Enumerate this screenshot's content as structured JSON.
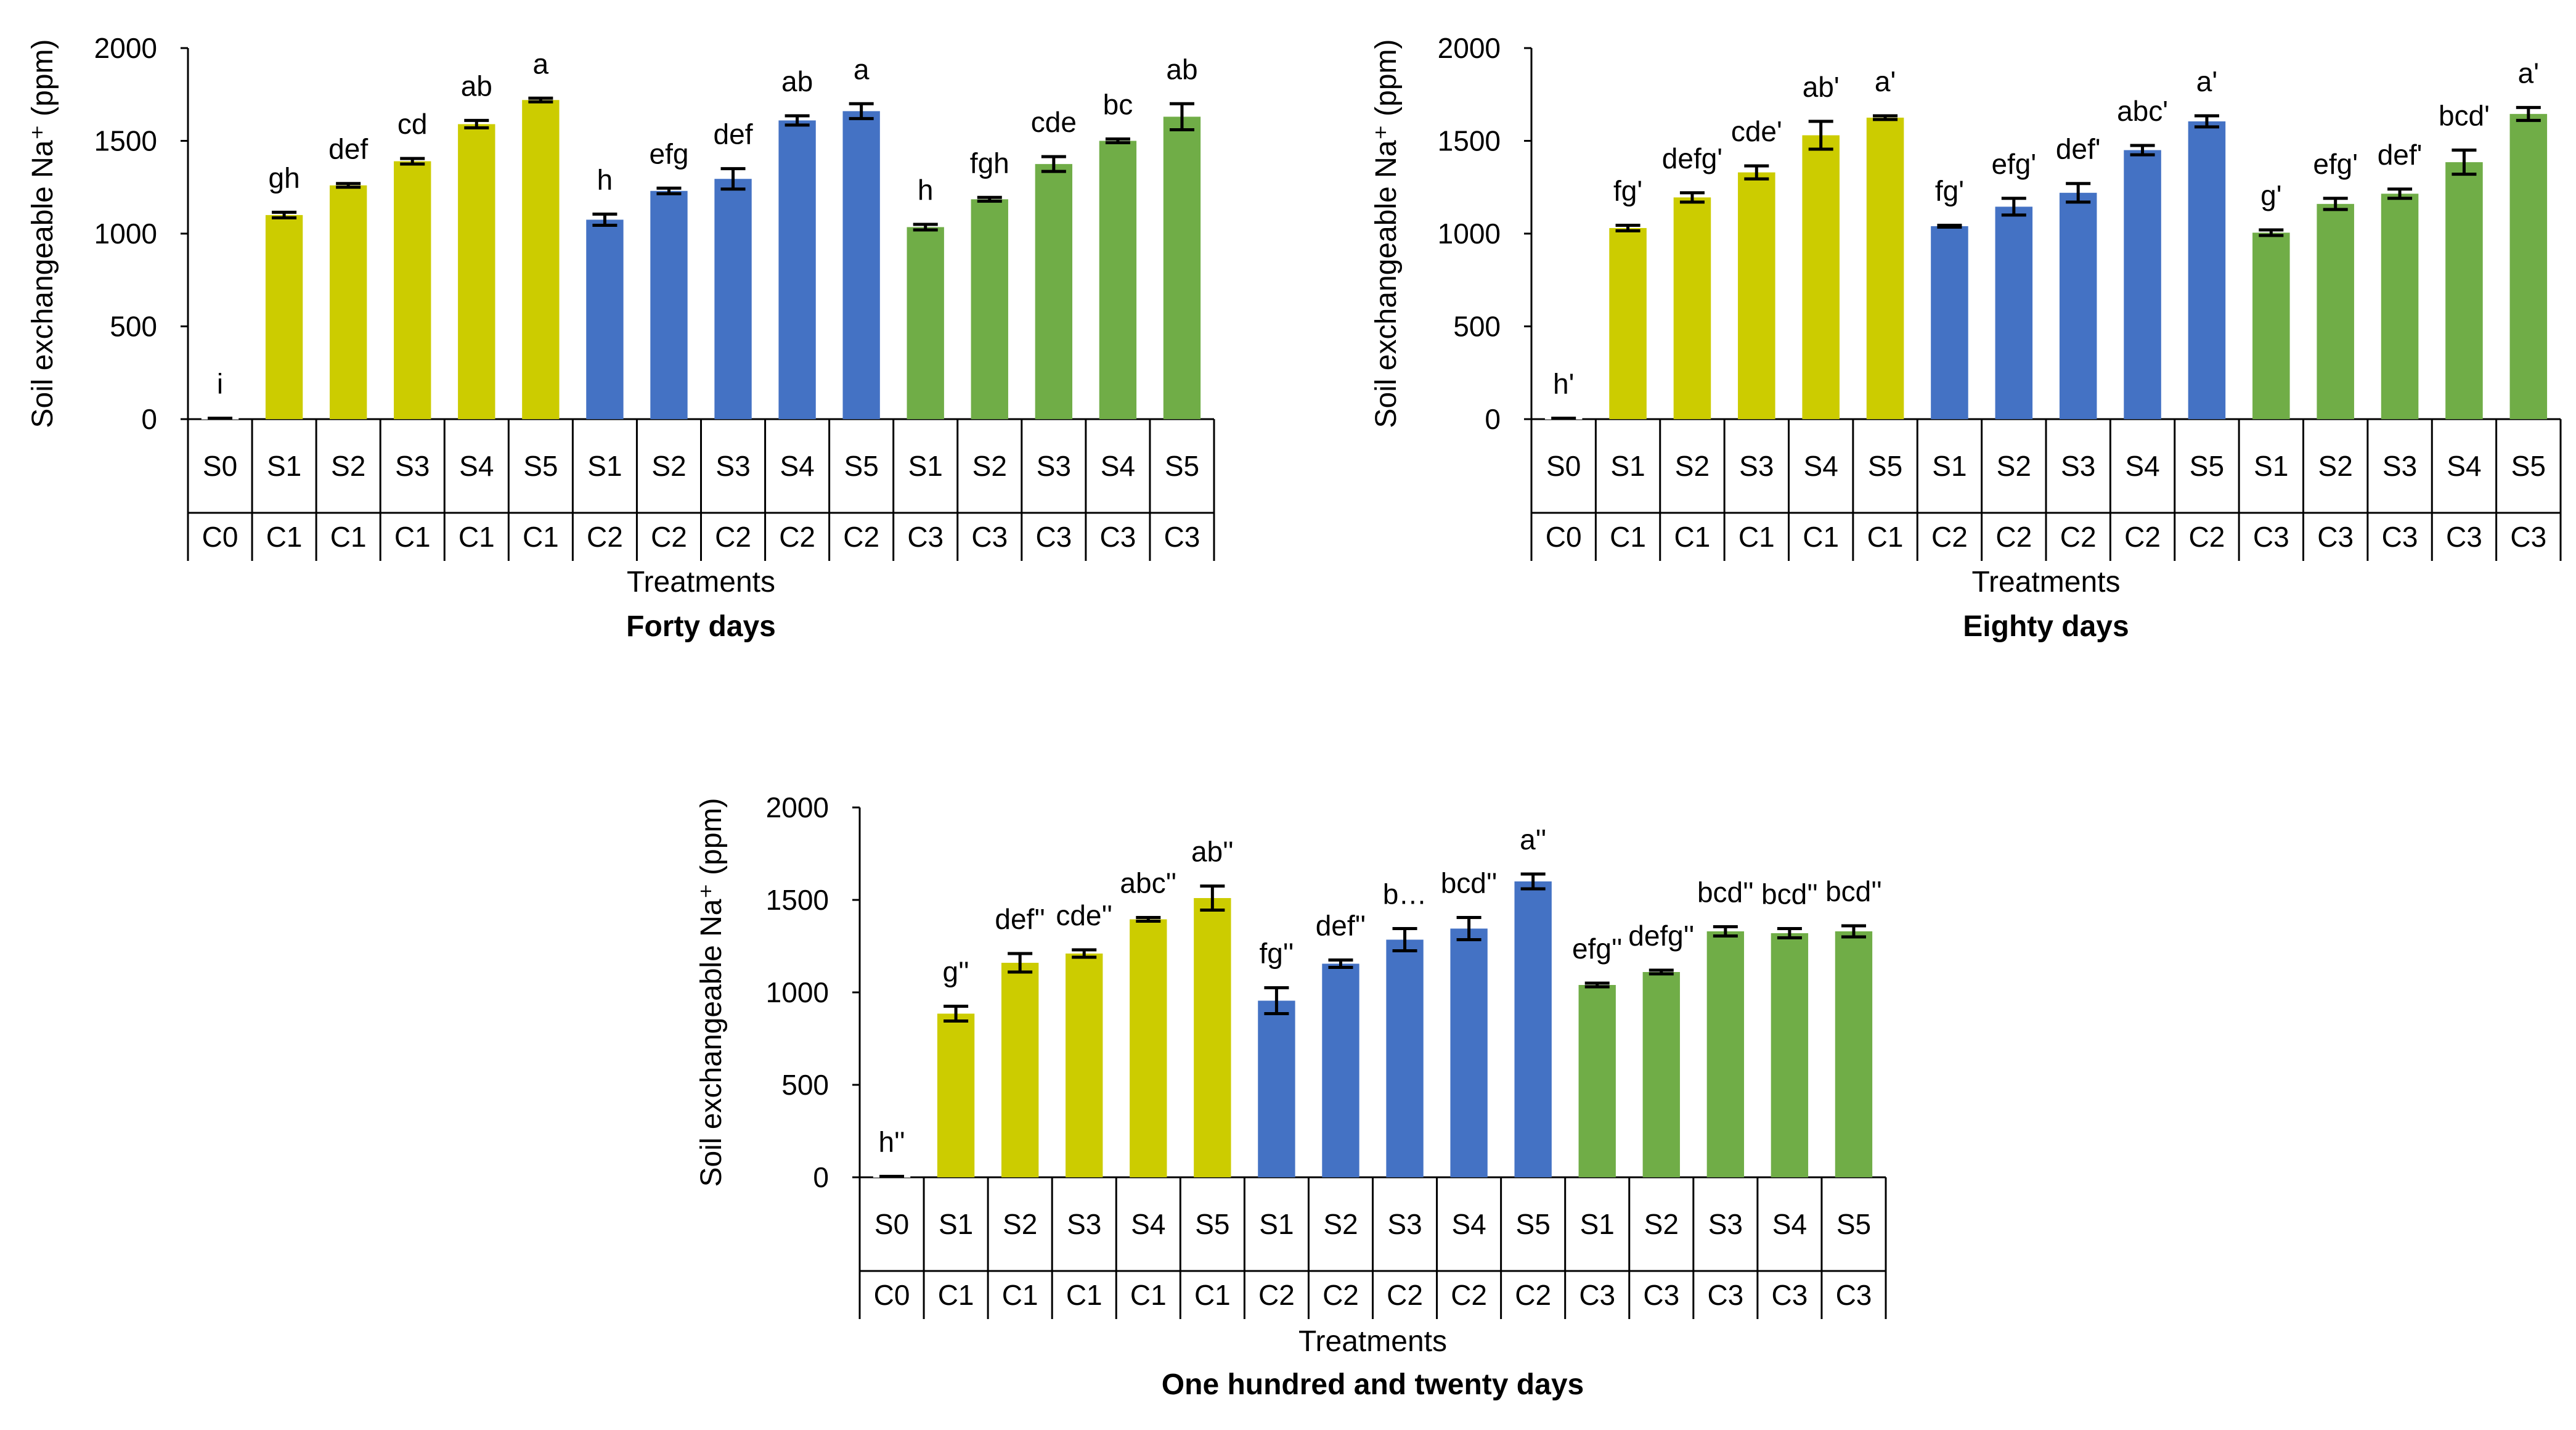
{
  "colors": {
    "C0": "#ffffff",
    "C1": "#cccc00",
    "C2": "#4472c4",
    "C3": "#70ad47",
    "axis": "#000000"
  },
  "chart_data": [
    {
      "type": "bar",
      "title": "Forty days",
      "xlabel": "Treatments",
      "ylabel": "Soil exchangeable Na⁺ (ppm)",
      "ylim": [
        0,
        2000
      ],
      "yticks": [
        0,
        500,
        1000,
        1500,
        2000
      ],
      "grid": false,
      "categories": [
        {
          "s": "S0",
          "c": "C0"
        },
        {
          "s": "S1",
          "c": "C1"
        },
        {
          "s": "S2",
          "c": "C1"
        },
        {
          "s": "S3",
          "c": "C1"
        },
        {
          "s": "S4",
          "c": "C1"
        },
        {
          "s": "S5",
          "c": "C1"
        },
        {
          "s": "S1",
          "c": "C2"
        },
        {
          "s": "S2",
          "c": "C2"
        },
        {
          "s": "S3",
          "c": "C2"
        },
        {
          "s": "S4",
          "c": "C2"
        },
        {
          "s": "S5",
          "c": "C2"
        },
        {
          "s": "S1",
          "c": "C3"
        },
        {
          "s": "S2",
          "c": "C3"
        },
        {
          "s": "S3",
          "c": "C3"
        },
        {
          "s": "S4",
          "c": "C3"
        },
        {
          "s": "S5",
          "c": "C3"
        }
      ],
      "values": [
        5,
        1100,
        1260,
        1390,
        1590,
        1720,
        1075,
        1230,
        1295,
        1610,
        1660,
        1035,
        1185,
        1375,
        1500,
        1630
      ],
      "errors": [
        0,
        15,
        10,
        15,
        20,
        10,
        30,
        15,
        55,
        25,
        40,
        15,
        10,
        40,
        10,
        70
      ],
      "labels": [
        "i",
        "gh",
        "def",
        "cd",
        "ab",
        "a",
        "h",
        "efg",
        "def",
        "ab",
        "a",
        "h",
        "fgh",
        "cde",
        "bc",
        "ab"
      ]
    },
    {
      "type": "bar",
      "title": "Eighty days",
      "xlabel": "Treatments",
      "ylabel": "Soil exchangeable Na⁺ (ppm)",
      "ylim": [
        0,
        2000
      ],
      "yticks": [
        0,
        500,
        1000,
        1500,
        2000
      ],
      "grid": false,
      "categories": [
        {
          "s": "S0",
          "c": "C0"
        },
        {
          "s": "S1",
          "c": "C1"
        },
        {
          "s": "S2",
          "c": "C1"
        },
        {
          "s": "S3",
          "c": "C1"
        },
        {
          "s": "S4",
          "c": "C1"
        },
        {
          "s": "S5",
          "c": "C1"
        },
        {
          "s": "S1",
          "c": "C2"
        },
        {
          "s": "S2",
          "c": "C2"
        },
        {
          "s": "S3",
          "c": "C2"
        },
        {
          "s": "S4",
          "c": "C2"
        },
        {
          "s": "S5",
          "c": "C2"
        },
        {
          "s": "S1",
          "c": "C3"
        },
        {
          "s": "S2",
          "c": "C3"
        },
        {
          "s": "S3",
          "c": "C3"
        },
        {
          "s": "S4",
          "c": "C3"
        },
        {
          "s": "S5",
          "c": "C3"
        }
      ],
      "values": [
        5,
        1030,
        1195,
        1330,
        1530,
        1625,
        1040,
        1145,
        1220,
        1450,
        1605,
        1005,
        1160,
        1215,
        1385,
        1645
      ],
      "errors": [
        0,
        15,
        25,
        35,
        75,
        10,
        5,
        45,
        50,
        25,
        30,
        15,
        30,
        25,
        65,
        35
      ],
      "labels": [
        "h'",
        "fg'",
        "defg'",
        "cde'",
        "ab'",
        "a'",
        "fg'",
        "efg'",
        "def'",
        "abc'",
        "a'",
        "g'",
        "efg'",
        "def'",
        "bcd'",
        "a'"
      ]
    },
    {
      "type": "bar",
      "title": "One hundred and twenty days",
      "xlabel": "Treatments",
      "ylabel": "Soil exchangeable Na⁺ (ppm)",
      "ylim": [
        0,
        2000
      ],
      "yticks": [
        0,
        500,
        1000,
        1500,
        2000
      ],
      "grid": false,
      "categories": [
        {
          "s": "S0",
          "c": "C0"
        },
        {
          "s": "S1",
          "c": "C1"
        },
        {
          "s": "S2",
          "c": "C1"
        },
        {
          "s": "S3",
          "c": "C1"
        },
        {
          "s": "S4",
          "c": "C1"
        },
        {
          "s": "S5",
          "c": "C1"
        },
        {
          "s": "S1",
          "c": "C2"
        },
        {
          "s": "S2",
          "c": "C2"
        },
        {
          "s": "S3",
          "c": "C2"
        },
        {
          "s": "S4",
          "c": "C2"
        },
        {
          "s": "S5",
          "c": "C2"
        },
        {
          "s": "S1",
          "c": "C3"
        },
        {
          "s": "S2",
          "c": "C3"
        },
        {
          "s": "S3",
          "c": "C3"
        },
        {
          "s": "S4",
          "c": "C3"
        },
        {
          "s": "S5",
          "c": "C3"
        }
      ],
      "values": [
        5,
        885,
        1160,
        1210,
        1395,
        1510,
        955,
        1155,
        1285,
        1345,
        1600,
        1040,
        1110,
        1330,
        1320,
        1330
      ],
      "errors": [
        0,
        40,
        50,
        20,
        10,
        65,
        70,
        20,
        60,
        60,
        40,
        10,
        10,
        25,
        25,
        30
      ],
      "labels": [
        "h''",
        "g''",
        "def''",
        "cde''",
        "abc''",
        "ab''",
        "fg''",
        "def''",
        "b…",
        "bcd''",
        "a''",
        "efg''",
        "defg''",
        "bcd''",
        "bcd''",
        "bcd''"
      ]
    }
  ]
}
